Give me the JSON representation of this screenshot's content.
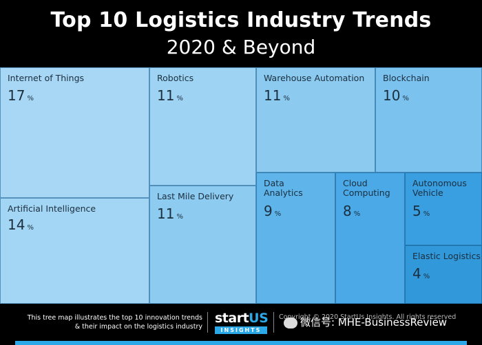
{
  "header": {
    "title": "Top 10 Logistics Industry Trends",
    "subtitle": "2020 & Beyond"
  },
  "chart_data": {
    "type": "treemap",
    "title": "Top 10 Logistics Industry Trends",
    "subtitle": "2020 & Beyond",
    "unit": "%",
    "items": [
      {
        "name": "Internet of Things",
        "value": 17,
        "color": "#a8d7f5"
      },
      {
        "name": "Artificial Intelligence",
        "value": 14,
        "color": "#a3d5f4"
      },
      {
        "name": "Robotics",
        "value": 11,
        "color": "#9fd3f3"
      },
      {
        "name": "Last Mile Delivery",
        "value": 11,
        "color": "#8ecbf0"
      },
      {
        "name": "Warehouse Automation",
        "value": 11,
        "color": "#8ccaf0"
      },
      {
        "name": "Blockchain",
        "value": 10,
        "color": "#7cc2ee"
      },
      {
        "name": "Data Analytics",
        "value": 9,
        "color": "#5fb4ea"
      },
      {
        "name": "Cloud Computing",
        "value": 8,
        "color": "#4aa9e6"
      },
      {
        "name": "Autonomous Vehicle",
        "value": 5,
        "color": "#3a9fe0"
      },
      {
        "name": "Elastic Logistics",
        "value": 4,
        "color": "#3198da"
      }
    ]
  },
  "footer": {
    "description_line1": "This tree map illustrates the top 10 innovation trends",
    "description_line2": "& their impact on the logistics industry",
    "logo_start": "start",
    "logo_us": "US",
    "logo_insights": "INSIGHTS",
    "copyright_line1": "Copyright © 2020 StartUs Insights. All rights reserved",
    "watermark": "微信号: MHE-BusinessReview"
  }
}
